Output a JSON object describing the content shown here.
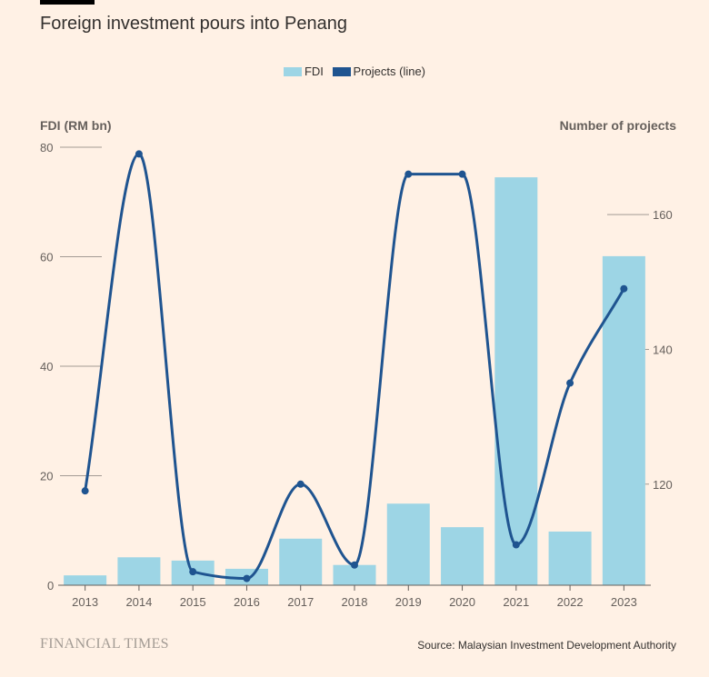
{
  "chart_data": {
    "type": "bar+line",
    "title": "Foreign investment pours into Penang",
    "categories": [
      "2013",
      "2014",
      "2015",
      "2016",
      "2017",
      "2018",
      "2019",
      "2020",
      "2021",
      "2022",
      "2023"
    ],
    "series": [
      {
        "name": "FDI",
        "type": "bar",
        "axis": "left",
        "color": "#9dd5e5",
        "values": [
          1.8,
          5.1,
          4.5,
          3.0,
          8.5,
          3.7,
          14.9,
          10.6,
          74.5,
          9.8,
          60.1
        ]
      },
      {
        "name": "Projects (line)",
        "type": "line",
        "axis": "right",
        "color": "#1f5490",
        "values": [
          119,
          169,
          107,
          106,
          120,
          108,
          166,
          166,
          111,
          135,
          149
        ]
      }
    ],
    "left_axis": {
      "label": "FDI (RM bn)",
      "range": [
        0,
        80
      ],
      "ticks": [
        0,
        20,
        40,
        60,
        80
      ]
    },
    "right_axis": {
      "label": "Number of projects",
      "range": [
        105,
        170
      ],
      "ticks": [
        120,
        140,
        160
      ]
    },
    "legend_placement": "top-center",
    "grid": false
  },
  "legend": {
    "fdi": "FDI",
    "projects": "Projects (line)"
  },
  "footer": {
    "logo": "FINANCIAL TIMES",
    "source": "Source: Malaysian Investment Development Authority"
  }
}
